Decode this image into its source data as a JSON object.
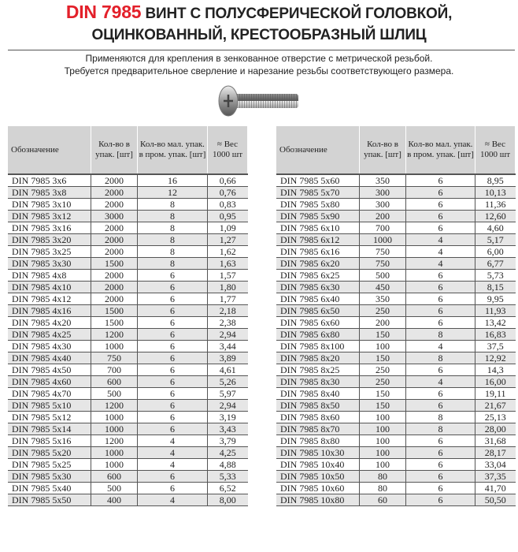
{
  "title": {
    "code": "DIN 7985",
    "line1": "ВИНТ С ПОЛУСФЕРИЧЕСКОЙ ГОЛОВКОЙ,",
    "line2": "ОЦИНКОВАННЫЙ, КРЕСТООБРАЗНЫЙ ШЛИЦ"
  },
  "subtitle": {
    "line1": "Применяются для крепления в зенкованное отверстие с метрической резьбой.",
    "line2": "Требуется предварительное сверление и нарезание резьбы соответствующего размера."
  },
  "headers": [
    "Обозначение",
    "Кол-во в упак. [шт]",
    "Кол-во мал. упак. в пром. упак. [шт]",
    "≈ Вес 1000 шт"
  ],
  "left_rows": [
    [
      "DIN 7985 3x6",
      "2000",
      "16",
      "0,66"
    ],
    [
      "DIN 7985 3x8",
      "2000",
      "12",
      "0,76"
    ],
    [
      "DIN 7985 3x10",
      "2000",
      "8",
      "0,83"
    ],
    [
      "DIN 7985 3x12",
      "3000",
      "8",
      "0,95"
    ],
    [
      "DIN 7985 3x16",
      "2000",
      "8",
      "1,09"
    ],
    [
      "DIN 7985 3x20",
      "2000",
      "8",
      "1,27"
    ],
    [
      "DIN 7985 3x25",
      "2000",
      "8",
      "1,62"
    ],
    [
      "DIN 7985 3x30",
      "1500",
      "8",
      "1,63"
    ],
    [
      "DIN 7985 4x8",
      "2000",
      "6",
      "1,57"
    ],
    [
      "DIN 7985 4x10",
      "2000",
      "6",
      "1,80"
    ],
    [
      "DIN 7985 4x12",
      "2000",
      "6",
      "1,77"
    ],
    [
      "DIN 7985 4x16",
      "1500",
      "6",
      "2,18"
    ],
    [
      "DIN 7985 4x20",
      "1500",
      "6",
      "2,38"
    ],
    [
      "DIN 7985 4x25",
      "1200",
      "6",
      "2,94"
    ],
    [
      "DIN 7985 4x30",
      "1000",
      "6",
      "3,44"
    ],
    [
      "DIN 7985 4x40",
      "750",
      "6",
      "3,89"
    ],
    [
      "DIN 7985 4x50",
      "700",
      "6",
      "4,61"
    ],
    [
      "DIN 7985 4x60",
      "600",
      "6",
      "5,26"
    ],
    [
      "DIN 7985 4x70",
      "500",
      "6",
      "5,97"
    ],
    [
      "DIN 7985 5x10",
      "1200",
      "6",
      "2,94"
    ],
    [
      "DIN 7985 5x12",
      "1000",
      "6",
      "3,19"
    ],
    [
      "DIN 7985 5x14",
      "1000",
      "6",
      "3,43"
    ],
    [
      "DIN 7985 5x16",
      "1200",
      "4",
      "3,79"
    ],
    [
      "DIN 7985 5x20",
      "1000",
      "4",
      "4,25"
    ],
    [
      "DIN 7985 5x25",
      "1000",
      "4",
      "4,88"
    ],
    [
      "DIN 7985 5x30",
      "600",
      "6",
      "5,33"
    ],
    [
      "DIN 7985 5x40",
      "500",
      "6",
      "6,52"
    ],
    [
      "DIN 7985 5x50",
      "400",
      "4",
      "8,00"
    ]
  ],
  "right_rows": [
    [
      "DIN 7985 5x60",
      "350",
      "6",
      "8,95"
    ],
    [
      "DIN 7985 5x70",
      "300",
      "6",
      "10,13"
    ],
    [
      "DIN 7985 5x80",
      "300",
      "6",
      "11,36"
    ],
    [
      "DIN 7985 5x90",
      "200",
      "6",
      "12,60"
    ],
    [
      "DIN 7985 6x10",
      "700",
      "6",
      "4,60"
    ],
    [
      "DIN 7985 6x12",
      "1000",
      "4",
      "5,17"
    ],
    [
      "DIN 7985 6x16",
      "750",
      "4",
      "6,00"
    ],
    [
      "DIN 7985 6x20",
      "750",
      "4",
      "6,77"
    ],
    [
      "DIN 7985 6x25",
      "500",
      "6",
      "5,73"
    ],
    [
      "DIN 7985 6x30",
      "450",
      "6",
      "8,15"
    ],
    [
      "DIN 7985 6x40",
      "350",
      "6",
      "9,95"
    ],
    [
      "DIN 7985 6x50",
      "250",
      "6",
      "11,93"
    ],
    [
      "DIN 7985 6x60",
      "200",
      "6",
      "13,42"
    ],
    [
      "DIN 7985 6x80",
      "150",
      "8",
      "16,83"
    ],
    [
      "DIN 7985 8x100",
      "100",
      "4",
      "37,5"
    ],
    [
      "DIN 7985 8x20",
      "150",
      "8",
      "12,92"
    ],
    [
      "DIN 7985 8x25",
      "250",
      "6",
      "14,3"
    ],
    [
      "DIN 7985 8x30",
      "250",
      "4",
      "16,00"
    ],
    [
      "DIN 7985 8x40",
      "150",
      "6",
      "19,11"
    ],
    [
      "DIN 7985 8x50",
      "150",
      "6",
      "21,67"
    ],
    [
      "DIN 7985 8x60",
      "100",
      "8",
      "25,13"
    ],
    [
      "DIN 7985 8x70",
      "100",
      "8",
      "28,00"
    ],
    [
      "DIN 7985 8x80",
      "100",
      "6",
      "31,68"
    ],
    [
      "DIN 7985 10x30",
      "100",
      "6",
      "28,17"
    ],
    [
      "DIN 7985 10x40",
      "100",
      "6",
      "33,04"
    ],
    [
      "DIN 7985 10x50",
      "80",
      "6",
      "37,35"
    ],
    [
      "DIN 7985 10x60",
      "80",
      "6",
      "41,70"
    ],
    [
      "DIN 7985 10x80",
      "60",
      "6",
      "50,50"
    ]
  ],
  "colors": {
    "accent": "#e3202a",
    "header_bg": "#d3d3d3",
    "stripe": "#e6e6e6"
  },
  "icons": [
    "screw-image"
  ]
}
